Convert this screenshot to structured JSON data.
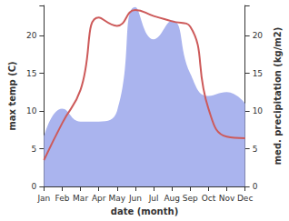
{
  "chart_data": {
    "type": "line",
    "x_label": "date (month)",
    "y_label": "max temp (C)",
    "y2_label": "med. precipitation (kg/m2)",
    "categories": [
      "Jan",
      "Feb",
      "Mar",
      "Apr",
      "May",
      "Jun",
      "Jul",
      "Aug",
      "Sep",
      "Oct",
      "Nov",
      "Dec"
    ],
    "series": [
      {
        "name": "med. precipitation (kg/m2)",
        "type": "area",
        "axis": "y2",
        "color": "#aab4ee",
        "values": [
          6.6,
          10.3,
          8.6,
          8.6,
          10.0,
          23.8,
          19.5,
          22.0,
          15.0,
          12.0,
          12.5,
          11.0
        ]
      },
      {
        "name": "max temp (C)",
        "type": "line",
        "color": "#cd5a5a",
        "values": [
          3.5,
          8.4,
          12.8,
          22.4,
          21.3,
          23.4,
          22.6,
          21.9,
          21.2,
          10.3,
          6.6,
          6.4
        ]
      }
    ],
    "ylim": [
      0,
      24
    ],
    "yticks": [
      0,
      5,
      10,
      15,
      20
    ],
    "y2lim": [
      0,
      24
    ],
    "y2ticks": [
      0,
      5,
      10,
      15,
      20
    ],
    "grid": false
  }
}
